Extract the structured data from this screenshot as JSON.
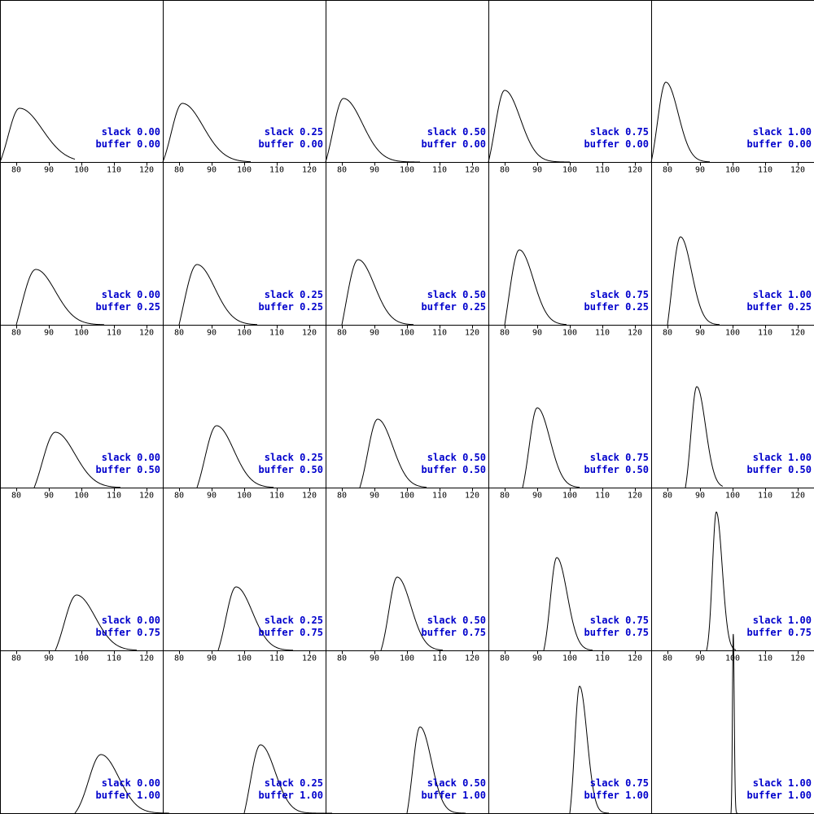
{
  "chart_data": {
    "type": "line",
    "layout": "5x5 small multiples",
    "x_ticks": [
      80,
      90,
      100,
      110,
      120
    ],
    "xlim": [
      75,
      125
    ],
    "grid": false,
    "legend": "none",
    "label_color": "#0000cc",
    "line_color": "#000000",
    "slack_values": [
      "0.00",
      "0.25",
      "0.50",
      "0.75",
      "1.00"
    ],
    "buffer_values": [
      "0.00",
      "0.25",
      "0.50",
      "0.75",
      "1.00"
    ],
    "label_templates": {
      "slack": "slack",
      "buffer": "buffer"
    },
    "panels": [
      {
        "slack": "0.00",
        "buffer": "0.00",
        "lo": 75,
        "mode": 81,
        "sd_left": 3.5,
        "sd_right": 7.0,
        "hi": 98,
        "peak_frac": 0.33
      },
      {
        "slack": "0.25",
        "buffer": "0.00",
        "lo": 75,
        "mode": 81,
        "sd_left": 3.4,
        "sd_right": 6.4,
        "hi": 102,
        "peak_frac": 0.36
      },
      {
        "slack": "0.50",
        "buffer": "0.00",
        "lo": 75,
        "mode": 80.5,
        "sd_left": 3.3,
        "sd_right": 5.8,
        "hi": 104,
        "peak_frac": 0.39
      },
      {
        "slack": "0.75",
        "buffer": "0.00",
        "lo": 75,
        "mode": 80,
        "sd_left": 3.0,
        "sd_right": 4.8,
        "hi": 100,
        "peak_frac": 0.44
      },
      {
        "slack": "1.00",
        "buffer": "0.00",
        "lo": 75,
        "mode": 79.5,
        "sd_left": 2.6,
        "sd_right": 3.8,
        "hi": 93,
        "peak_frac": 0.49
      },
      {
        "slack": "0.00",
        "buffer": "0.25",
        "lo": 80,
        "mode": 86,
        "sd_left": 4.5,
        "sd_right": 6.0,
        "hi": 107,
        "peak_frac": 0.34
      },
      {
        "slack": "0.25",
        "buffer": "0.25",
        "lo": 80,
        "mode": 85.5,
        "sd_left": 4.2,
        "sd_right": 5.5,
        "hi": 104,
        "peak_frac": 0.37
      },
      {
        "slack": "0.50",
        "buffer": "0.25",
        "lo": 80,
        "mode": 85,
        "sd_left": 3.8,
        "sd_right": 5.0,
        "hi": 102,
        "peak_frac": 0.4
      },
      {
        "slack": "0.75",
        "buffer": "0.25",
        "lo": 80,
        "mode": 84.5,
        "sd_left": 3.3,
        "sd_right": 4.3,
        "hi": 99,
        "peak_frac": 0.46
      },
      {
        "slack": "1.00",
        "buffer": "0.25",
        "lo": 80,
        "mode": 84,
        "sd_left": 2.7,
        "sd_right": 3.4,
        "hi": 96,
        "peak_frac": 0.54
      },
      {
        "slack": "0.00",
        "buffer": "0.50",
        "lo": 85.5,
        "mode": 92,
        "sd_left": 4.0,
        "sd_right": 6.0,
        "hi": 112,
        "peak_frac": 0.34
      },
      {
        "slack": "0.25",
        "buffer": "0.50",
        "lo": 85.5,
        "mode": 91.5,
        "sd_left": 3.6,
        "sd_right": 5.3,
        "hi": 109,
        "peak_frac": 0.38
      },
      {
        "slack": "0.50",
        "buffer": "0.50",
        "lo": 85.5,
        "mode": 91,
        "sd_left": 3.1,
        "sd_right": 4.6,
        "hi": 106,
        "peak_frac": 0.42
      },
      {
        "slack": "0.75",
        "buffer": "0.50",
        "lo": 85.5,
        "mode": 90,
        "sd_left": 2.5,
        "sd_right": 3.9,
        "hi": 103,
        "peak_frac": 0.49
      },
      {
        "slack": "1.00",
        "buffer": "0.50",
        "lo": 85.5,
        "mode": 89,
        "sd_left": 1.8,
        "sd_right": 2.7,
        "hi": 97,
        "peak_frac": 0.62
      },
      {
        "slack": "0.00",
        "buffer": "0.75",
        "lo": 92,
        "mode": 98.5,
        "sd_left": 3.8,
        "sd_right": 5.7,
        "hi": 117,
        "peak_frac": 0.34
      },
      {
        "slack": "0.25",
        "buffer": "0.75",
        "lo": 92,
        "mode": 97.5,
        "sd_left": 3.2,
        "sd_right": 5.0,
        "hi": 115,
        "peak_frac": 0.39
      },
      {
        "slack": "0.50",
        "buffer": "0.75",
        "lo": 92,
        "mode": 97,
        "sd_left": 2.6,
        "sd_right": 4.2,
        "hi": 111,
        "peak_frac": 0.45
      },
      {
        "slack": "0.75",
        "buffer": "0.75",
        "lo": 92,
        "mode": 96,
        "sd_left": 2.0,
        "sd_right": 3.2,
        "hi": 107,
        "peak_frac": 0.57
      },
      {
        "slack": "1.00",
        "buffer": "0.75",
        "lo": 92,
        "mode": 95,
        "sd_left": 1.2,
        "sd_right": 1.8,
        "hi": 101,
        "peak_frac": 0.85
      },
      {
        "slack": "0.00",
        "buffer": "1.00",
        "lo": 98,
        "mode": 106,
        "sd_left": 3.8,
        "sd_right": 5.5,
        "hi": 130,
        "peak_frac": 0.36
      },
      {
        "slack": "0.25",
        "buffer": "1.00",
        "lo": 100,
        "mode": 105,
        "sd_left": 3.2,
        "sd_right": 4.5,
        "hi": 127,
        "peak_frac": 0.42
      },
      {
        "slack": "0.50",
        "buffer": "1.00",
        "lo": 100,
        "mode": 104,
        "sd_left": 2.3,
        "sd_right": 3.5,
        "hi": 118,
        "peak_frac": 0.53
      },
      {
        "slack": "0.75",
        "buffer": "1.00",
        "lo": 100,
        "mode": 103,
        "sd_left": 1.5,
        "sd_right": 2.3,
        "hi": 112,
        "peak_frac": 0.78
      },
      {
        "slack": "1.00",
        "buffer": "1.00",
        "lo": 99.5,
        "mode": 100.2,
        "sd_left": 0.25,
        "sd_right": 0.3,
        "hi": 101.5,
        "peak_frac": 1.1
      }
    ]
  }
}
